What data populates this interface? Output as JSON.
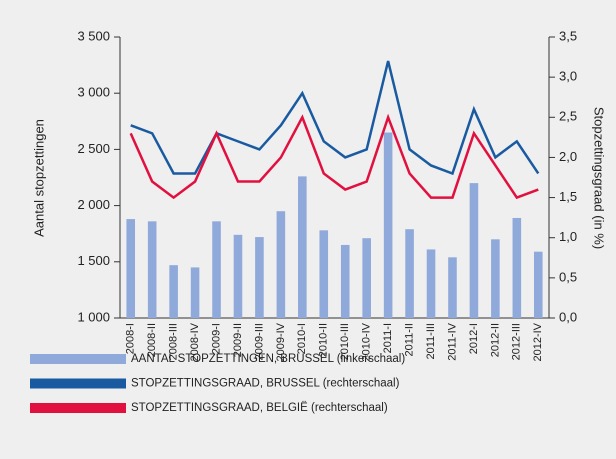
{
  "chart_data": {
    "type": "combo",
    "y_label": "Aantal stopzettingen",
    "y2_label": "Stopzettingsgraad (in %)",
    "categories": [
      "2008-I",
      "2008-II",
      "2008-III",
      "2008-IV",
      "2009-I",
      "2009-II",
      "2009-III",
      "2009-IV",
      "2010-I",
      "2010-II",
      "2010-III",
      "2010-IV",
      "2011-I",
      "2011-II",
      "2011-III",
      "2011-IV",
      "2012-I",
      "2012-II",
      "2012-III",
      "2012-IV"
    ],
    "series": [
      {
        "name": "AANTAL STOPZETTINGEN, BRUSSEL (linkerschaal)",
        "type": "bar",
        "color": "#8fa9da",
        "values": [
          1880,
          1860,
          1470,
          1450,
          1860,
          1740,
          1720,
          1950,
          2260,
          1780,
          1650,
          1710,
          2650,
          1790,
          1610,
          1540,
          2200,
          1700,
          1890,
          1590
        ]
      },
      {
        "name": "STOPZETTINGSGRAAD, BRUSSEL (rechterschaal)",
        "type": "line",
        "axis": "y2",
        "color": "#1a5aa0",
        "values": [
          2.4,
          2.3,
          1.8,
          1.8,
          2.3,
          2.2,
          2.1,
          2.4,
          2.8,
          2.2,
          2.0,
          2.1,
          3.2,
          2.1,
          1.9,
          1.8,
          2.6,
          2.0,
          2.2,
          1.8
        ]
      },
      {
        "name": "STOPZETTINGSGRAAD, BELGIË (rechterschaal)",
        "type": "line",
        "axis": "y2",
        "color": "#e2103f",
        "values": [
          2.3,
          1.7,
          1.5,
          1.7,
          2.3,
          1.7,
          1.7,
          2.0,
          2.5,
          1.8,
          1.6,
          1.7,
          2.5,
          1.8,
          1.5,
          1.5,
          2.3,
          1.9,
          1.5,
          1.6
        ]
      }
    ],
    "ylim": [
      1000,
      3500
    ],
    "yticks": [
      {
        "value": 1000,
        "label": "1 000"
      },
      {
        "value": 1500,
        "label": "1 500"
      },
      {
        "value": 2000,
        "label": "2 000"
      },
      {
        "value": 2500,
        "label": "2 500"
      },
      {
        "value": 3000,
        "label": "3 000"
      },
      {
        "value": 3500,
        "label": "3 500"
      }
    ],
    "y2lim": [
      0,
      3.5
    ],
    "y2ticks": [
      {
        "value": 0,
        "label": "0,0"
      },
      {
        "value": 0.5,
        "label": "0,5"
      },
      {
        "value": 1,
        "label": "1,0"
      },
      {
        "value": 1.5,
        "label": "1,5"
      },
      {
        "value": 2,
        "label": "2,0"
      },
      {
        "value": 2.5,
        "label": "2,5"
      },
      {
        "value": 3,
        "label": "3,0"
      },
      {
        "value": 3.5,
        "label": "3,5"
      }
    ],
    "grid": false
  }
}
